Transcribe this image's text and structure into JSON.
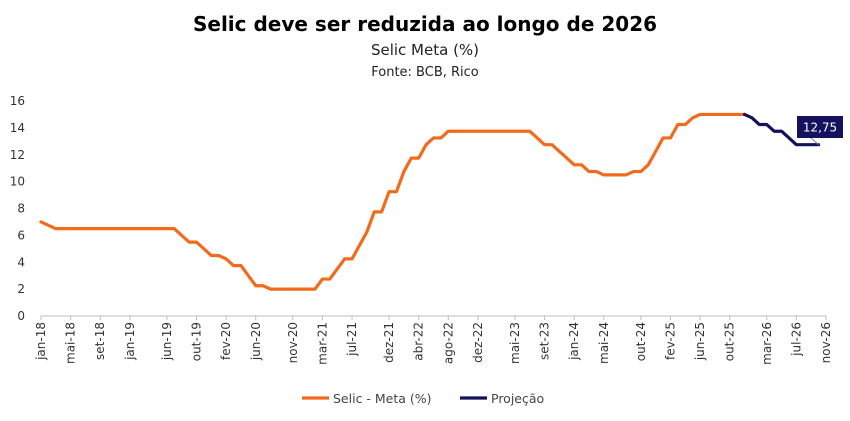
{
  "chart_data": {
    "type": "line",
    "title": "Selic deve ser reduzida ao longo de 2026",
    "subtitle": "Selic Meta (%)",
    "source": "Fonte: BCB, Rico",
    "ylim": [
      0,
      16
    ],
    "yticks": [
      0,
      2,
      4,
      6,
      8,
      10,
      12,
      14,
      16
    ],
    "xlim": [
      "2018-01",
      "2026-11"
    ],
    "xticks": [
      "jan-18",
      "mai-18",
      "set-18",
      "jan-19",
      "jun-19",
      "out-19",
      "fev-20",
      "jun-20",
      "nov-20",
      "mar-21",
      "jul-21",
      "dez-21",
      "abr-22",
      "ago-22",
      "dez-22",
      "mai-23",
      "set-23",
      "jan-24",
      "mai-24",
      "out-24",
      "fev-25",
      "jun-25",
      "out-25",
      "mar-26",
      "jul-26",
      "nov-26"
    ],
    "grid": false,
    "legend_position": "bottom",
    "series": [
      {
        "name": "Selic - Meta (%)",
        "color": "#F26B1D",
        "points": [
          [
            "2018-01",
            7.0
          ],
          [
            "2018-02",
            6.75
          ],
          [
            "2018-03",
            6.5
          ],
          [
            "2018-04",
            6.5
          ],
          [
            "2018-05",
            6.5
          ],
          [
            "2018-06",
            6.5
          ],
          [
            "2018-07",
            6.5
          ],
          [
            "2018-08",
            6.5
          ],
          [
            "2018-09",
            6.5
          ],
          [
            "2018-10",
            6.5
          ],
          [
            "2018-11",
            6.5
          ],
          [
            "2018-12",
            6.5
          ],
          [
            "2019-01",
            6.5
          ],
          [
            "2019-02",
            6.5
          ],
          [
            "2019-03",
            6.5
          ],
          [
            "2019-04",
            6.5
          ],
          [
            "2019-05",
            6.5
          ],
          [
            "2019-06",
            6.5
          ],
          [
            "2019-07",
            6.5
          ],
          [
            "2019-08",
            6.0
          ],
          [
            "2019-09",
            5.5
          ],
          [
            "2019-10",
            5.5
          ],
          [
            "2019-11",
            5.0
          ],
          [
            "2019-12",
            4.5
          ],
          [
            "2020-01",
            4.5
          ],
          [
            "2020-02",
            4.25
          ],
          [
            "2020-03",
            3.75
          ],
          [
            "2020-04",
            3.75
          ],
          [
            "2020-05",
            3.0
          ],
          [
            "2020-06",
            2.25
          ],
          [
            "2020-07",
            2.25
          ],
          [
            "2020-08",
            2.0
          ],
          [
            "2020-09",
            2.0
          ],
          [
            "2020-10",
            2.0
          ],
          [
            "2020-11",
            2.0
          ],
          [
            "2020-12",
            2.0
          ],
          [
            "2021-01",
            2.0
          ],
          [
            "2021-02",
            2.0
          ],
          [
            "2021-03",
            2.75
          ],
          [
            "2021-04",
            2.75
          ],
          [
            "2021-05",
            3.5
          ],
          [
            "2021-06",
            4.25
          ],
          [
            "2021-07",
            4.25
          ],
          [
            "2021-08",
            5.25
          ],
          [
            "2021-09",
            6.25
          ],
          [
            "2021-10",
            7.75
          ],
          [
            "2021-11",
            7.75
          ],
          [
            "2021-12",
            9.25
          ],
          [
            "2022-01",
            9.25
          ],
          [
            "2022-02",
            10.75
          ],
          [
            "2022-03",
            11.75
          ],
          [
            "2022-04",
            11.75
          ],
          [
            "2022-05",
            12.75
          ],
          [
            "2022-06",
            13.25
          ],
          [
            "2022-07",
            13.25
          ],
          [
            "2022-08",
            13.75
          ],
          [
            "2022-09",
            13.75
          ],
          [
            "2022-10",
            13.75
          ],
          [
            "2022-11",
            13.75
          ],
          [
            "2022-12",
            13.75
          ],
          [
            "2023-01",
            13.75
          ],
          [
            "2023-02",
            13.75
          ],
          [
            "2023-03",
            13.75
          ],
          [
            "2023-04",
            13.75
          ],
          [
            "2023-05",
            13.75
          ],
          [
            "2023-06",
            13.75
          ],
          [
            "2023-07",
            13.75
          ],
          [
            "2023-08",
            13.25
          ],
          [
            "2023-09",
            12.75
          ],
          [
            "2023-10",
            12.75
          ],
          [
            "2023-11",
            12.25
          ],
          [
            "2023-12",
            11.75
          ],
          [
            "2024-01",
            11.25
          ],
          [
            "2024-02",
            11.25
          ],
          [
            "2024-03",
            10.75
          ],
          [
            "2024-04",
            10.75
          ],
          [
            "2024-05",
            10.5
          ],
          [
            "2024-06",
            10.5
          ],
          [
            "2024-07",
            10.5
          ],
          [
            "2024-08",
            10.5
          ],
          [
            "2024-09",
            10.75
          ],
          [
            "2024-10",
            10.75
          ],
          [
            "2024-11",
            11.25
          ],
          [
            "2024-12",
            12.25
          ],
          [
            "2025-01",
            13.25
          ],
          [
            "2025-02",
            13.25
          ],
          [
            "2025-03",
            14.25
          ],
          [
            "2025-04",
            14.25
          ],
          [
            "2025-05",
            14.75
          ],
          [
            "2025-06",
            15.0
          ],
          [
            "2025-07",
            15.0
          ],
          [
            "2025-08",
            15.0
          ],
          [
            "2025-09",
            15.0
          ],
          [
            "2025-10",
            15.0
          ],
          [
            "2025-11",
            15.0
          ],
          [
            "2025-12",
            15.0
          ]
        ]
      },
      {
        "name": "Projeção",
        "color": "#14125E",
        "points": [
          [
            "2025-12",
            15.0
          ],
          [
            "2026-01",
            14.75
          ],
          [
            "2026-02",
            14.25
          ],
          [
            "2026-03",
            14.25
          ],
          [
            "2026-04",
            13.75
          ],
          [
            "2026-05",
            13.75
          ],
          [
            "2026-06",
            13.25
          ],
          [
            "2026-07",
            12.75
          ],
          [
            "2026-08",
            12.75
          ],
          [
            "2026-09",
            12.75
          ],
          [
            "2026-10",
            12.75
          ]
        ],
        "end_label": "12,75",
        "end_label_color": "#14125E"
      }
    ]
  }
}
